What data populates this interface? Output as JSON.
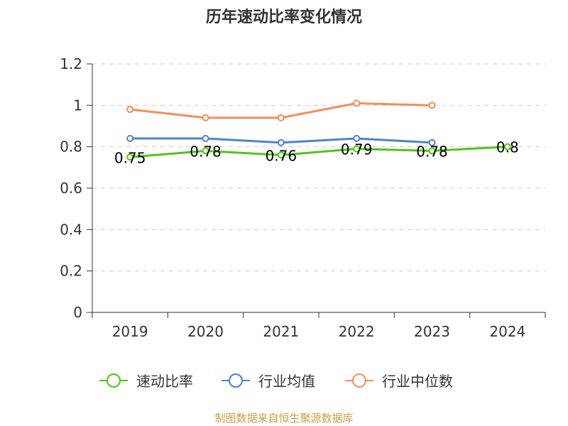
{
  "chart_data": {
    "type": "line",
    "title": "历年速动比率变化情况",
    "categories": [
      "2019",
      "2020",
      "2021",
      "2022",
      "2023",
      "2024"
    ],
    "ylim": [
      0,
      1.2
    ],
    "yticks": [
      "0",
      "0.2",
      "0.4",
      "0.6",
      "0.8",
      "1",
      "1.2"
    ],
    "grid": true,
    "legend_position": "bottom",
    "series": [
      {
        "name": "速动比率",
        "color": "#52c41a",
        "values": [
          0.75,
          0.78,
          0.76,
          0.79,
          0.78,
          0.8
        ],
        "labels": [
          "0.75",
          "0.78",
          "0.76",
          "0.79",
          "0.78",
          "0.8"
        ]
      },
      {
        "name": "行业均值",
        "color": "#4f81d6",
        "values": [
          0.84,
          0.84,
          0.82,
          0.84,
          0.82,
          null
        ]
      },
      {
        "name": "行业中位数",
        "color": "#f58d5b",
        "values": [
          0.98,
          0.94,
          0.94,
          1.01,
          1.0,
          null
        ]
      }
    ],
    "source": "制图数据来自恒生聚源数据库"
  }
}
